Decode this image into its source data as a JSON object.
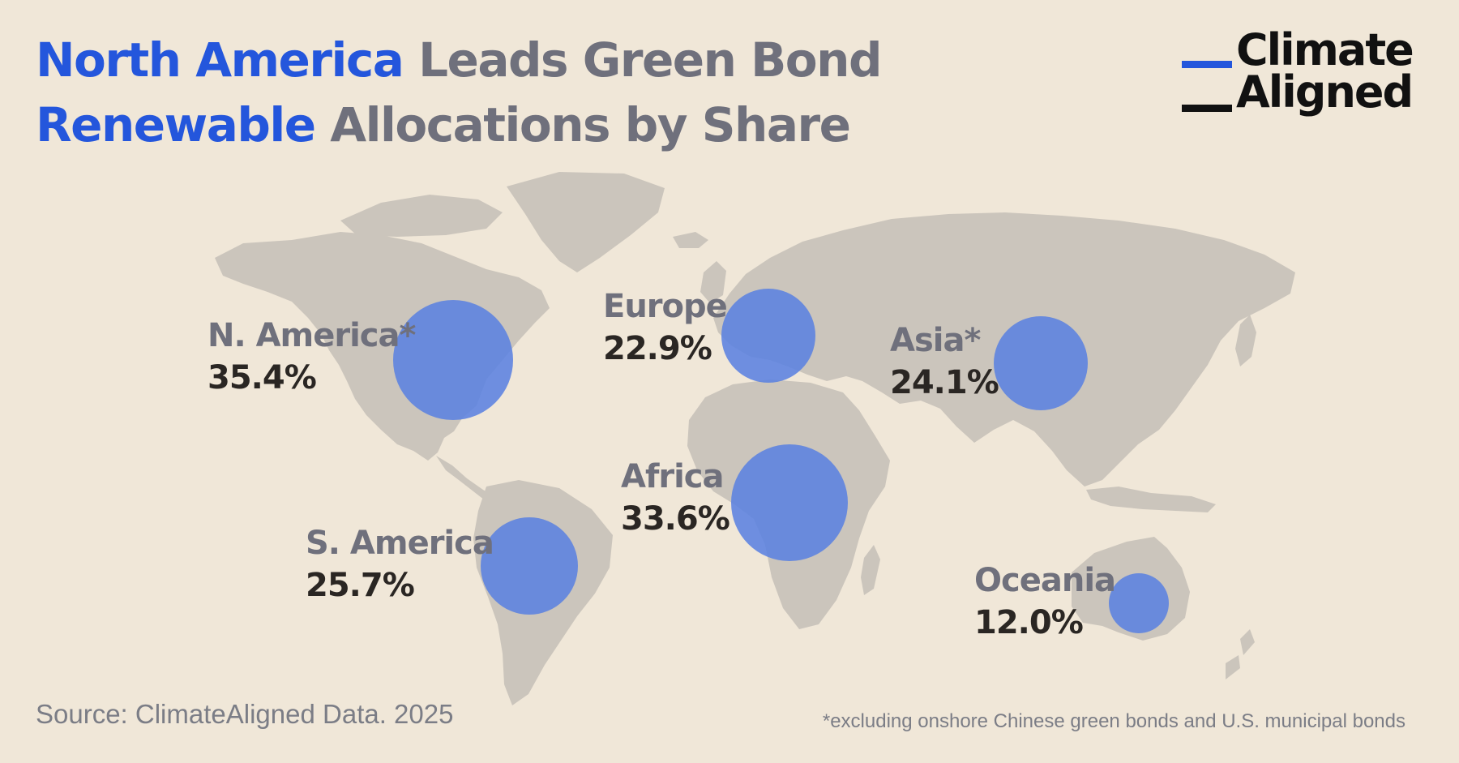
{
  "title": {
    "part1_accent": "North America",
    "part2": " Leads Green Bond ",
    "part3_accent": "Renewable",
    "part4": " Allocations by Share"
  },
  "logo": {
    "line1": "Climate",
    "line2": "Aligned"
  },
  "colors": {
    "background": "#f0e7d8",
    "land": "#cbc5bc",
    "bubble": "#5b82e0",
    "accent": "#2456dc",
    "label_gray": "#6f707c",
    "value_dark": "#2a2623"
  },
  "regions": [
    {
      "name": "N. America*",
      "value": "35.4%",
      "share": 35.4
    },
    {
      "name": "Europe",
      "value": "22.9%",
      "share": 22.9
    },
    {
      "name": "Asia*",
      "value": "24.1%",
      "share": 24.1
    },
    {
      "name": "Africa",
      "value": "33.6%",
      "share": 33.6
    },
    {
      "name": "S. America",
      "value": "25.7%",
      "share": 25.7
    },
    {
      "name": "Oceania",
      "value": "12.0%",
      "share": 12.0
    }
  ],
  "source": "Source: ClimateAligned Data. 2025",
  "footnote": "*excluding onshore Chinese green bonds and U.S. municipal bonds"
}
